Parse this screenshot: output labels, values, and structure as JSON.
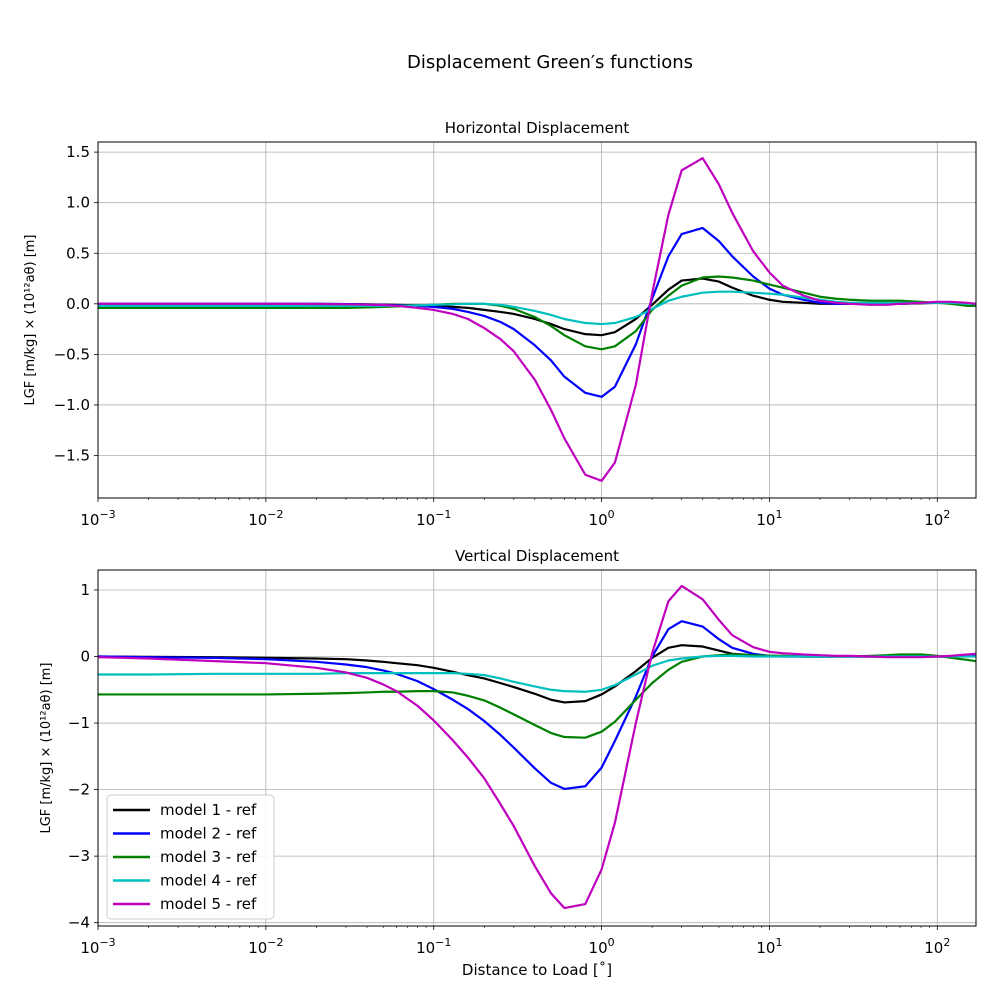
{
  "chart_data": {
    "title": "Displacement Green′s functions",
    "xlabel": "Distance to Load [˚]",
    "x_scale": "log",
    "xlim": [
      0.001,
      170
    ],
    "x": [
      0.001,
      0.002,
      0.005,
      0.01,
      0.02,
      0.03,
      0.04,
      0.05,
      0.06,
      0.08,
      0.1,
      0.13,
      0.16,
      0.2,
      0.25,
      0.3,
      0.4,
      0.5,
      0.6,
      0.8,
      1.0,
      1.2,
      1.6,
      2.0,
      2.5,
      3.0,
      4.0,
      5.0,
      6.0,
      8.0,
      10,
      12,
      16,
      20,
      25,
      30,
      40,
      50,
      60,
      80,
      100,
      120,
      150,
      170
    ],
    "legend": {
      "location": "lower-left",
      "entries": [
        "model 1 - ref",
        "model 2 - ref",
        "model 3 - ref",
        "model 4 - ref",
        "model 5 - ref"
      ]
    },
    "panels": [
      {
        "type": "line",
        "title": "Horizontal Displacement",
        "ylabel": "LGF [m/kg] × (10¹²aθ) [m]",
        "ylim": [
          -1.92,
          1.6
        ],
        "y_ticks": [
          -1.5,
          -1.0,
          -0.5,
          0.0,
          0.5,
          1.0,
          1.5
        ],
        "y_tick_labels": [
          "−1.5",
          "−1.0",
          "−0.5",
          "0.0",
          "0.5",
          "1.0",
          "1.5"
        ],
        "series": [
          {
            "name": "model 1 - ref",
            "color": "#000000",
            "values": [
              0,
              0,
              0,
              0,
              0,
              -0.003,
              -0.005,
              -0.008,
              -0.01,
              -0.015,
              -0.02,
              -0.03,
              -0.04,
              -0.06,
              -0.08,
              -0.1,
              -0.15,
              -0.2,
              -0.25,
              -0.3,
              -0.31,
              -0.28,
              -0.15,
              -0.01,
              0.14,
              0.23,
              0.25,
              0.22,
              0.16,
              0.08,
              0.04,
              0.02,
              0.01,
              0,
              0,
              0,
              0,
              0,
              0,
              0.005,
              0.01,
              0.01,
              0.005,
              0
            ]
          },
          {
            "name": "model 2 - ref",
            "color": "#0000ff",
            "values": [
              0,
              0,
              0,
              0,
              0,
              -0.003,
              -0.006,
              -0.01,
              -0.015,
              -0.02,
              -0.03,
              -0.05,
              -0.08,
              -0.12,
              -0.18,
              -0.25,
              -0.41,
              -0.56,
              -0.72,
              -0.88,
              -0.92,
              -0.82,
              -0.4,
              0.05,
              0.47,
              0.69,
              0.75,
              0.62,
              0.47,
              0.27,
              0.15,
              0.09,
              0.04,
              0.01,
              0,
              0,
              0,
              0,
              0,
              0.01,
              0.01,
              0.01,
              0.005,
              0
            ]
          },
          {
            "name": "model 3 - ref",
            "color": "#008000",
            "values": [
              -0.04,
              -0.04,
              -0.04,
              -0.04,
              -0.04,
              -0.04,
              -0.035,
              -0.03,
              -0.025,
              -0.015,
              -0.01,
              0,
              0,
              0,
              -0.02,
              -0.05,
              -0.13,
              -0.22,
              -0.31,
              -0.42,
              -0.45,
              -0.42,
              -0.27,
              -0.06,
              0.08,
              0.18,
              0.26,
              0.27,
              0.26,
              0.23,
              0.19,
              0.16,
              0.11,
              0.07,
              0.05,
              0.04,
              0.03,
              0.03,
              0.03,
              0.02,
              0.01,
              0,
              -0.02,
              -0.02
            ]
          },
          {
            "name": "model 4 - ref",
            "color": "#00bfbf",
            "values": [
              -0.02,
              -0.02,
              -0.02,
              -0.02,
              -0.02,
              -0.02,
              -0.02,
              -0.02,
              -0.02,
              -0.015,
              -0.01,
              -0.005,
              0,
              0,
              -0.01,
              -0.03,
              -0.07,
              -0.11,
              -0.15,
              -0.19,
              -0.2,
              -0.19,
              -0.13,
              -0.05,
              0.03,
              0.07,
              0.11,
              0.12,
              0.12,
              0.11,
              0.1,
              0.09,
              0.06,
              0.04,
              0.02,
              0.01,
              0.01,
              0.01,
              0.01,
              0.01,
              0.01,
              0.01,
              0,
              0
            ]
          },
          {
            "name": "model 5 - ref",
            "color": "#bf00bf",
            "values": [
              0,
              0,
              0,
              0,
              -0.002,
              -0.005,
              -0.008,
              -0.012,
              -0.02,
              -0.04,
              -0.06,
              -0.1,
              -0.15,
              -0.24,
              -0.35,
              -0.47,
              -0.75,
              -1.05,
              -1.33,
              -1.69,
              -1.75,
              -1.57,
              -0.8,
              0.1,
              0.88,
              1.32,
              1.44,
              1.18,
              0.9,
              0.52,
              0.31,
              0.18,
              0.08,
              0.03,
              0.01,
              0,
              -0.01,
              -0.01,
              0,
              0.01,
              0.02,
              0.02,
              0.01,
              0
            ]
          }
        ]
      },
      {
        "type": "line",
        "title": "Vertical Displacement",
        "ylabel": "LGF [m/kg] × (10¹²aθ) [m]",
        "ylim": [
          -4.05,
          1.3
        ],
        "y_ticks": [
          -4,
          -3,
          -2,
          -1,
          0,
          1
        ],
        "y_tick_labels": [
          "−4",
          "−3",
          "−2",
          "−1",
          "0",
          "1"
        ],
        "series": [
          {
            "name": "model 1 - ref",
            "color": "#000000",
            "values": [
              0,
              -0.005,
              -0.01,
              -0.02,
              -0.03,
              -0.04,
              -0.06,
              -0.08,
              -0.1,
              -0.13,
              -0.17,
              -0.23,
              -0.28,
              -0.33,
              -0.4,
              -0.46,
              -0.56,
              -0.65,
              -0.69,
              -0.67,
              -0.57,
              -0.45,
              -0.22,
              -0.02,
              0.13,
              0.17,
              0.15,
              0.09,
              0.04,
              0.02,
              0.01,
              0.01,
              0,
              0,
              0,
              0,
              0,
              0,
              0,
              0,
              0,
              0,
              0.02,
              0.02
            ]
          },
          {
            "name": "model 2 - ref",
            "color": "#0000ff",
            "values": [
              0,
              -0.01,
              -0.02,
              -0.04,
              -0.08,
              -0.12,
              -0.16,
              -0.21,
              -0.26,
              -0.37,
              -0.49,
              -0.65,
              -0.79,
              -0.97,
              -1.18,
              -1.37,
              -1.68,
              -1.9,
              -1.99,
              -1.95,
              -1.67,
              -1.27,
              -0.6,
              0.0,
              0.41,
              0.53,
              0.45,
              0.26,
              0.13,
              0.04,
              0.01,
              0,
              0,
              0,
              0,
              0,
              0,
              0,
              0,
              0,
              0,
              0,
              0.02,
              0.03
            ]
          },
          {
            "name": "model 3 - ref",
            "color": "#008000",
            "values": [
              -0.57,
              -0.57,
              -0.57,
              -0.57,
              -0.56,
              -0.55,
              -0.54,
              -0.53,
              -0.53,
              -0.52,
              -0.52,
              -0.54,
              -0.59,
              -0.66,
              -0.77,
              -0.87,
              -1.03,
              -1.15,
              -1.21,
              -1.22,
              -1.13,
              -0.98,
              -0.65,
              -0.4,
              -0.2,
              -0.08,
              0.0,
              0.02,
              0.03,
              0.02,
              0.01,
              0.01,
              0,
              0,
              0,
              0,
              0.01,
              0.02,
              0.03,
              0.03,
              0.01,
              -0.02,
              -0.05,
              -0.07
            ]
          },
          {
            "name": "model 4 - ref",
            "color": "#00bfbf",
            "values": [
              -0.27,
              -0.27,
              -0.26,
              -0.26,
              -0.26,
              -0.25,
              -0.25,
              -0.25,
              -0.25,
              -0.25,
              -0.25,
              -0.25,
              -0.26,
              -0.28,
              -0.33,
              -0.38,
              -0.45,
              -0.5,
              -0.52,
              -0.53,
              -0.5,
              -0.43,
              -0.27,
              -0.14,
              -0.06,
              -0.03,
              0,
              0.01,
              0.01,
              0,
              0,
              0,
              0,
              0,
              0,
              0,
              0,
              0,
              0,
              0,
              0,
              0,
              0,
              0
            ]
          },
          {
            "name": "model 5 - ref",
            "color": "#bf00bf",
            "values": [
              -0.01,
              -0.03,
              -0.07,
              -0.1,
              -0.17,
              -0.24,
              -0.32,
              -0.42,
              -0.52,
              -0.74,
              -0.96,
              -1.26,
              -1.52,
              -1.83,
              -2.22,
              -2.55,
              -3.15,
              -3.56,
              -3.78,
              -3.72,
              -3.2,
              -2.5,
              -1.0,
              0.05,
              0.83,
              1.06,
              0.86,
              0.55,
              0.32,
              0.14,
              0.07,
              0.05,
              0.03,
              0.02,
              0.01,
              0.01,
              0,
              -0.01,
              -0.01,
              -0.01,
              0,
              0.01,
              0.03,
              0.04
            ]
          }
        ]
      }
    ]
  }
}
